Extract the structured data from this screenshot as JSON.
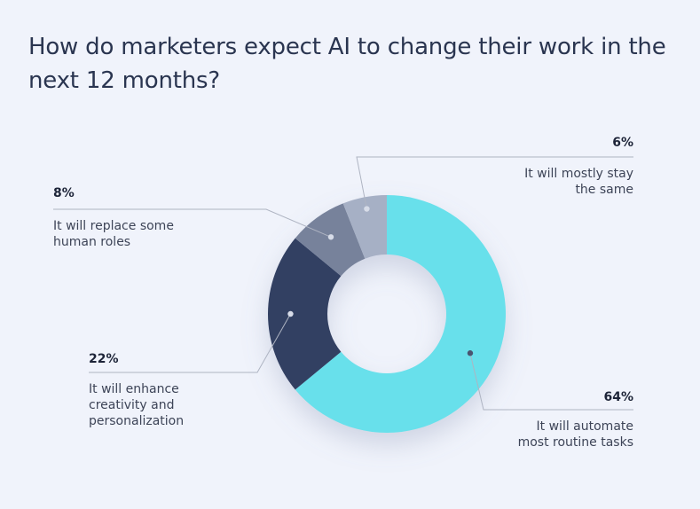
{
  "chart_data": {
    "type": "pie",
    "title": "How do marketers expect AI to change their work in the next 12 months?",
    "donut": true,
    "slices": [
      {
        "label": "It will automate most routine tasks",
        "value": 64,
        "value_label": "64%",
        "color": "#68e0eb"
      },
      {
        "label": "It will enhance creativity and personalization",
        "value": 22,
        "value_label": "22%",
        "color": "#313f62"
      },
      {
        "label": "It will replace some human roles",
        "value": 8,
        "value_label": "8%",
        "color": "#77829b"
      },
      {
        "label": "It will mostly stay the same",
        "value": 6,
        "value_label": "6%",
        "color": "#a6b0c5"
      }
    ]
  }
}
